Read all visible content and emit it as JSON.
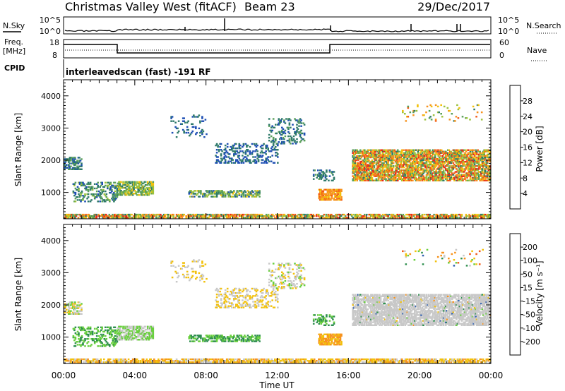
{
  "header": {
    "title": "Christmas Valley West (fitACF)",
    "beam": "Beam 23",
    "date": "29/Dec/2017"
  },
  "top_panels": {
    "nsky_label": "N.Sky",
    "nsearch_label": "N.Search",
    "nsky_ticks": [
      "10^5",
      "10^0"
    ],
    "freq_label_1": "Freq.",
    "freq_label_2": "[MHz]",
    "freq_ticks": [
      "18",
      "8"
    ],
    "nave_label": "Nave",
    "nave_ticks": [
      "60",
      "0"
    ],
    "cpid_label": "CPID",
    "cpid_text": "interleavedscan (fast) -191 RF"
  },
  "chart_data": [
    {
      "type": "heatmap",
      "name": "power",
      "ylabel": "Slant Range [km]",
      "xlabel": "",
      "yticks": [
        "1000",
        "2000",
        "3000",
        "4000"
      ],
      "ylim": [
        180,
        4500
      ],
      "colorbar_label": "Power [dB]",
      "colorbar_ticks": [
        "4",
        "8",
        "12",
        "16",
        "20",
        "24",
        "28"
      ],
      "colorbar_colors": [
        "#1c14ff",
        "#1f4fb4",
        "#2f7a6a",
        "#5aa05a",
        "#9cc23c",
        "#f2c10c",
        "#f7931e",
        "#f25a17",
        "#e8231a"
      ]
    },
    {
      "type": "heatmap",
      "name": "velocity",
      "ylabel": "Slant Range [km]",
      "xlabel": "Time UT",
      "yticks": [
        "1000",
        "2000",
        "3000",
        "4000"
      ],
      "ylim": [
        180,
        4500
      ],
      "xticks": [
        "00:00",
        "04:00",
        "08:00",
        "12:00",
        "16:00",
        "20:00",
        "00:00"
      ],
      "colorbar_label": "Velocity [m s⁻¹]",
      "colorbar_ticks": [
        "-200",
        "-100",
        "-50",
        "-15",
        "15",
        "50",
        "100",
        "200"
      ],
      "colorbar_colors": [
        "#e8231a",
        "#f25a17",
        "#f7931e",
        "#f2c10c",
        "#c8c8c8",
        "#69cf3e",
        "#2e8f4e",
        "#2f5fb0",
        "#1c2fd8"
      ]
    }
  ]
}
